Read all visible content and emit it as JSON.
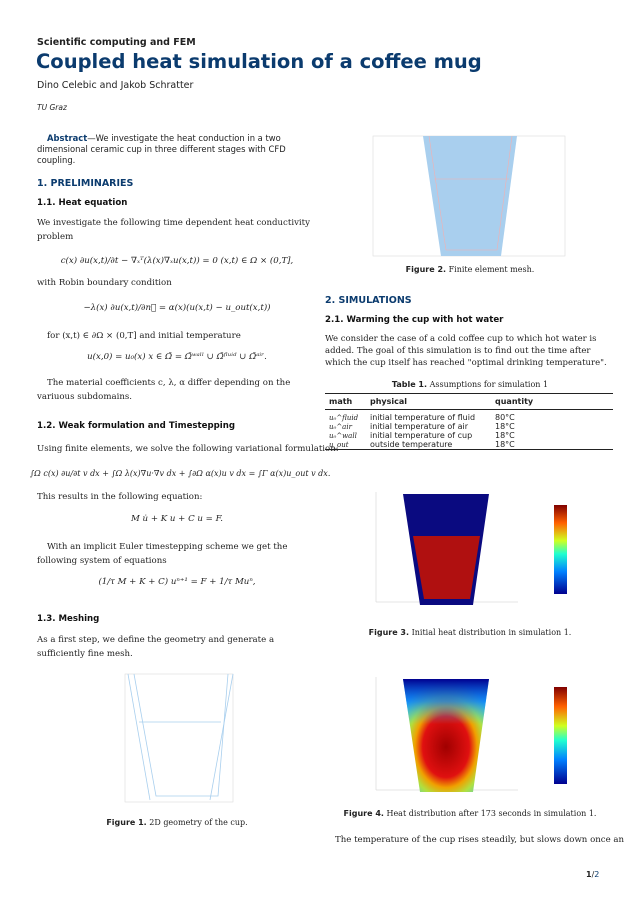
{
  "header": {
    "journal": "Scientific computing and FEM",
    "title": "Coupled heat simulation of a coffee mug",
    "authors": "Dino Celebic and Jakob Schratter",
    "affiliation": "TU Graz"
  },
  "abstract": {
    "label": "Abstract",
    "text": "—We investigate the heat conduction in a two dimensional ceramic cup in three different stages with CFD coupling."
  },
  "sec1": {
    "title": "1.  PRELIMINARIES",
    "s11": {
      "title": "1.1.  Heat equation",
      "p1": "We investigate the following time dependent heat conductivity problem",
      "eq1": "c(x) ∂u(x,t)/∂t − ∇ₓᵀ(λ(x)∇ₓu(x,t)) = 0        (x,t) ∈ Ω × (0,T],",
      "p2": "with Robin boundary condition",
      "eq2": "−λ(x) ∂u(x,t)/∂n⃗ = α(x)(u(x,t) − u_out(x,t))",
      "p3": "for (x,t) ∈ ∂Ω × (0,T] and initial temperature",
      "eq3": "u(x,0) = u₀(x)      x ∈ Ω̄ = Ω̄ʷᵃˡˡ ∪ Ω̄ᶠˡᵘⁱᵈ ∪ Ω̄ᵃⁱʳ.",
      "p4": "The material coefficients c, λ, α differ depending on the variuous subdomains."
    },
    "s12": {
      "title": "1.2.  Weak formulation and Timestepping",
      "p1": "Using finite elements, we solve the following variational formulation:",
      "eq1": "∫Ω c(x) ∂u/∂t v dx + ∫Ω λ(x)∇u·∇v dx + ∫∂Ω α(x)u v dx = ∫Γ α(x)u_out v dx.",
      "p2": "This results in the following equation:",
      "eq2": "M u̇ + K u + C u = F.",
      "p3": "With an implicit Euler timestepping scheme we get the following system of equations",
      "eq3": "(1/τ M + K + C) uⁿ⁺¹ = F + 1/τ Muⁿ,"
    },
    "s13": {
      "title": "1.3.  Meshing",
      "p1": "As a first step, we define the geometry and generate a sufficiently fine mesh."
    }
  },
  "fig1": {
    "label": "Figure 1.",
    "caption": "2D geometry of the cup."
  },
  "fig2": {
    "label": "Figure 2.",
    "caption": "Finite element mesh."
  },
  "sec2": {
    "title": "2.  SIMULATIONS",
    "s21": {
      "title": "2.1.  Warming the cup with hot water",
      "p1": "We consider the case of a cold coffee cup to which hot water is added. The goal of this simulation is to find out the time after which the cup itself has reached \"optimal drinking temperature\"."
    },
    "p_last": "The temperature of the cup rises steadily, but slows down once an"
  },
  "table1": {
    "label": "Table 1.",
    "caption": "Assumptions for simulation 1",
    "headers": [
      "math",
      "physical",
      "quantity"
    ],
    "rows": [
      [
        "u₀^fluid",
        "initial temperature of fluid",
        "80°C"
      ],
      [
        "u₀^air",
        "initial temperature of air",
        "18°C"
      ],
      [
        "u₀^wall",
        "initial temperature of cup",
        "18°C"
      ],
      [
        "u_out",
        "outside temperature",
        "18°C"
      ]
    ]
  },
  "fig3": {
    "label": "Figure 3.",
    "caption": "Initial heat distribution in simulation 1."
  },
  "fig4": {
    "label": "Figure 4.",
    "caption": "Heat distribution after 173 seconds in simulation 1."
  },
  "footer": {
    "page": "1",
    "total": "2"
  },
  "colors": {
    "accent": "#0b3b6e",
    "mesh": "#a9cfee",
    "hot": "#b01010",
    "cold": "#0a0a80"
  }
}
